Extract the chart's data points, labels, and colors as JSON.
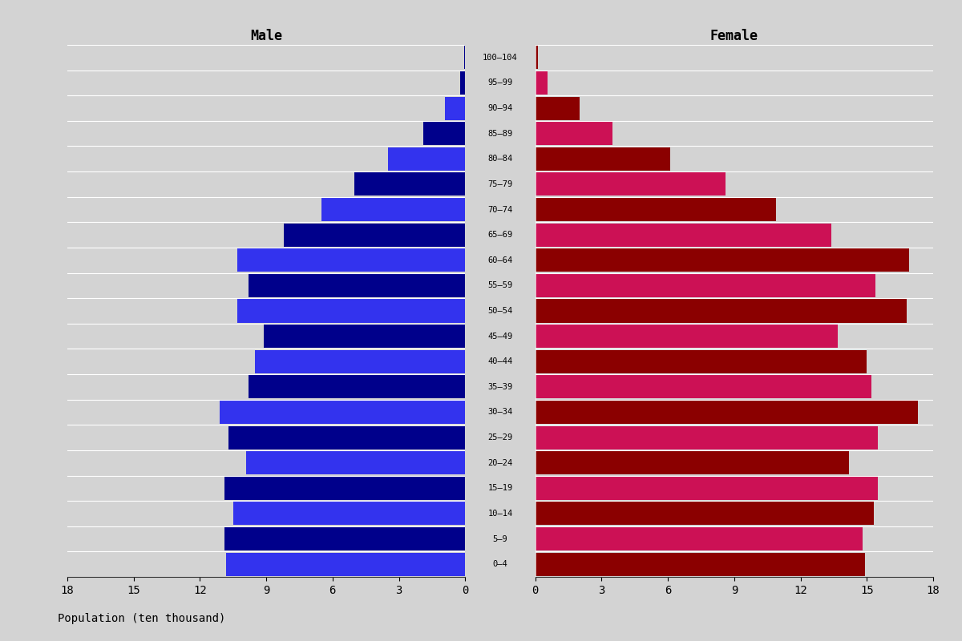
{
  "age_groups": [
    "100–104",
    "95–99",
    "90–94",
    "85–89",
    "80–84",
    "75–79",
    "70–74",
    "65–69",
    "60–64",
    "55–59",
    "50–54",
    "45–49",
    "40–44",
    "35–39",
    "30–34",
    "25–29",
    "20–24",
    "15–19",
    "10–14",
    "5–9",
    "0–4"
  ],
  "male_vals": [
    0.05,
    0.22,
    0.9,
    1.9,
    3.5,
    5.0,
    6.5,
    8.2,
    10.3,
    9.8,
    10.3,
    9.1,
    9.5,
    9.8,
    11.1,
    10.7,
    9.9,
    10.9,
    10.5,
    10.9,
    10.8
  ],
  "female_vals": [
    0.12,
    0.55,
    2.0,
    3.5,
    6.1,
    8.6,
    10.9,
    13.4,
    16.9,
    15.4,
    16.8,
    13.7,
    15.0,
    15.2,
    17.3,
    15.5,
    14.2,
    15.5,
    15.3,
    14.8,
    14.9
  ],
  "male_colors": [
    "#00008B",
    "#00008B",
    "#4040FF",
    "#00008B",
    "#4040FF",
    "#00008B",
    "#4040FF",
    "#00008B",
    "#4040FF",
    "#00008B",
    "#4040FF",
    "#00008B",
    "#4040FF",
    "#00008B",
    "#4040FF",
    "#00008B",
    "#4040FF",
    "#00008B",
    "#4040FF",
    "#00008B",
    "#4040FF"
  ],
  "female_colors": [
    "#8B0000",
    "#CC1155",
    "#8B0000",
    "#CC1155",
    "#8B0000",
    "#CC1155",
    "#8B0000",
    "#CC1155",
    "#8B0000",
    "#CC1155",
    "#8B0000",
    "#CC1155",
    "#8B0000",
    "#CC1155",
    "#8B0000",
    "#CC1155",
    "#8B0000",
    "#CC1155",
    "#8B0000",
    "#CC1155",
    "#8B0000"
  ],
  "bg_color": "#D3D3D3",
  "title_male": "Male",
  "title_female": "Female",
  "xlabel": "Population (ten thousand)",
  "xlim": 18,
  "xticks": [
    0,
    3,
    6,
    9,
    12,
    15,
    18
  ],
  "label_fontsize": 7.5,
  "title_fontsize": 12,
  "tick_fontsize": 10
}
